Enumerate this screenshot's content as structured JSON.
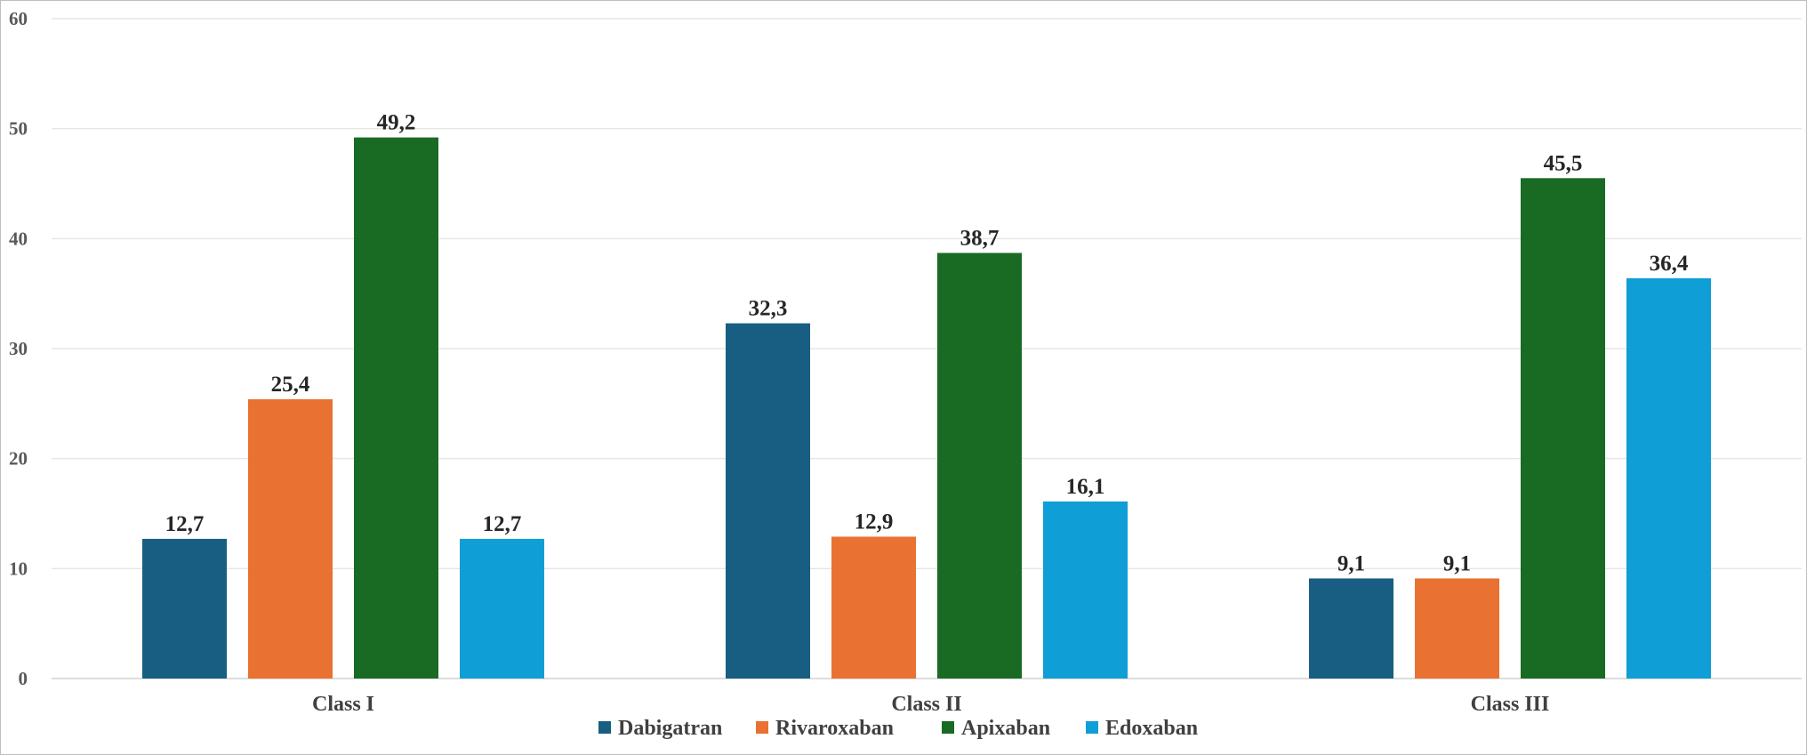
{
  "chart_data": {
    "type": "bar",
    "title": "",
    "xlabel": "",
    "ylabel": "",
    "categories": [
      "Class I",
      "Class II",
      "Class III"
    ],
    "ylim": [
      0,
      60
    ],
    "yticks": [
      0,
      10,
      20,
      30,
      40,
      50,
      60
    ],
    "grid": true,
    "legend_position": "bottom",
    "series": [
      {
        "name": "Dabigatran",
        "color": "#175e82",
        "values": [
          12.7,
          32.3,
          9.1
        ],
        "labels": [
          "12,7",
          "32,3",
          "9,1"
        ]
      },
      {
        "name": "Rivaroxaban",
        "color": "#e97132",
        "values": [
          25.4,
          12.9,
          9.1
        ],
        "labels": [
          "25,4",
          "12,9",
          "9,1"
        ]
      },
      {
        "name": "Apixaban",
        "color": "#196b24",
        "values": [
          49.2,
          38.7,
          45.5
        ],
        "labels": [
          "49,2",
          "38,7",
          "45,5"
        ]
      },
      {
        "name": "Edoxaban",
        "color": "#0f9ed5",
        "values": [
          12.7,
          16.1,
          36.4
        ],
        "labels": [
          "12,7",
          "16,1",
          "36,4"
        ]
      }
    ]
  }
}
